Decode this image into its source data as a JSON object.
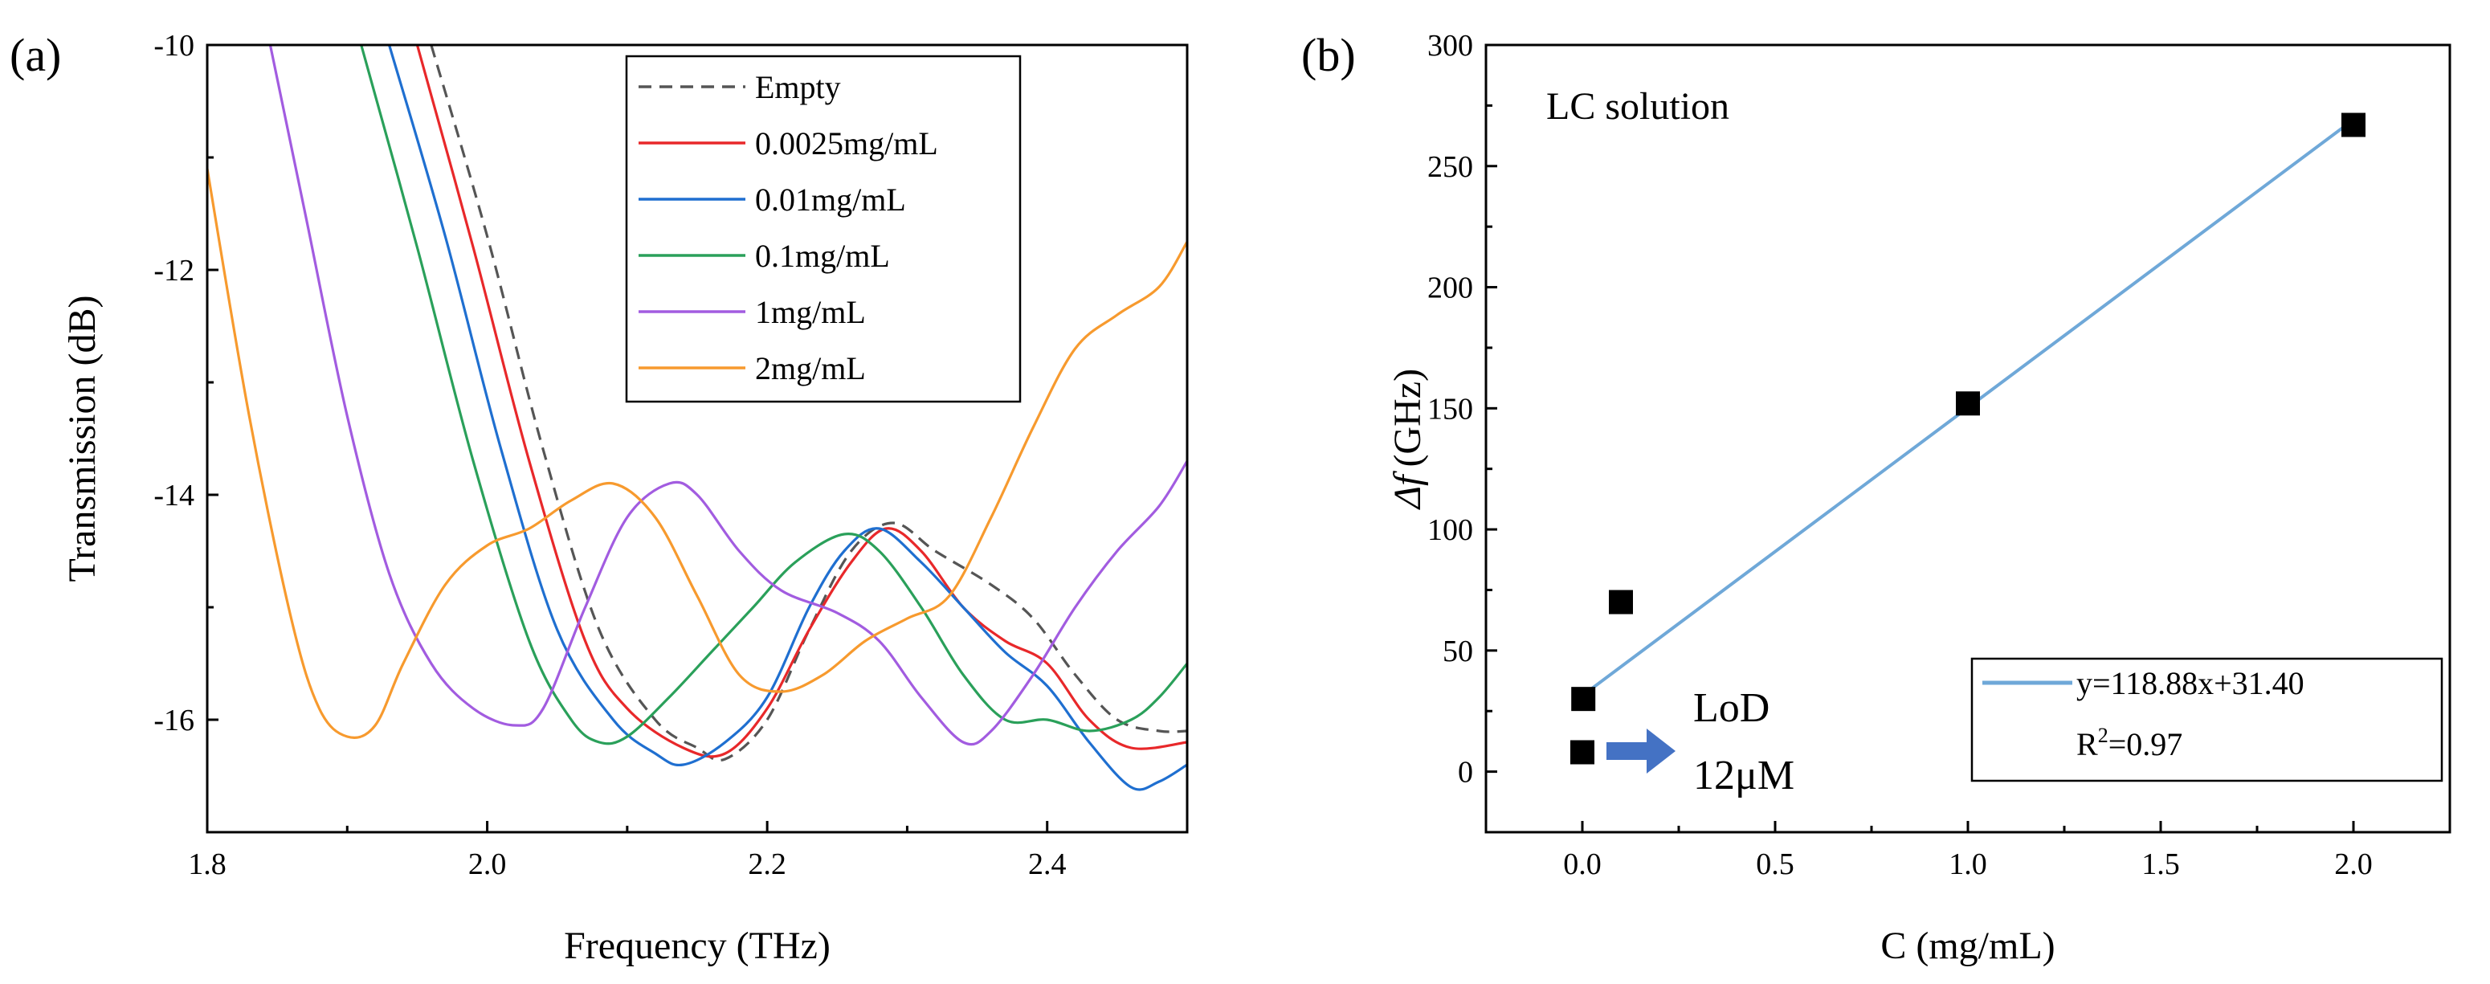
{
  "chart_data": [
    {
      "type": "line",
      "panel_label": "(a)",
      "xlabel": "Frequency (THz)",
      "ylabel": "Transmission (dB)",
      "xlim": [
        1.8,
        2.5
      ],
      "ylim": [
        -17,
        -10
      ],
      "xticks": [
        1.8,
        2.0,
        2.2,
        2.4
      ],
      "xtick_labels": [
        "1.8",
        "2.0",
        "2.2",
        "2.4"
      ],
      "yticks": [
        -16,
        -14,
        -12,
        -10
      ],
      "ytick_labels": [
        "-16",
        "-14",
        "-12",
        "-10"
      ],
      "legend_position": "top-center",
      "series": [
        {
          "name": "Empty",
          "color": "#555555",
          "dash": true,
          "points": [
            [
              1.96,
              -10.0
            ],
            [
              2.0,
              -11.7
            ],
            [
              2.04,
              -13.6
            ],
            [
              2.08,
              -15.2
            ],
            [
              2.12,
              -16.0
            ],
            [
              2.15,
              -16.25
            ],
            [
              2.17,
              -16.35
            ],
            [
              2.2,
              -16.0
            ],
            [
              2.23,
              -15.2
            ],
            [
              2.26,
              -14.5
            ],
            [
              2.29,
              -14.25
            ],
            [
              2.32,
              -14.5
            ],
            [
              2.36,
              -14.8
            ],
            [
              2.39,
              -15.1
            ],
            [
              2.42,
              -15.6
            ],
            [
              2.45,
              -16.0
            ],
            [
              2.48,
              -16.1
            ],
            [
              2.5,
              -16.1
            ]
          ]
        },
        {
          "name": "0.0025mg/mL",
          "color": "#E8282A",
          "dash": false,
          "points": [
            [
              1.95,
              -10.0
            ],
            [
              1.99,
              -11.8
            ],
            [
              2.03,
              -13.7
            ],
            [
              2.07,
              -15.3
            ],
            [
              2.1,
              -15.9
            ],
            [
              2.14,
              -16.25
            ],
            [
              2.17,
              -16.3
            ],
            [
              2.2,
              -15.9
            ],
            [
              2.23,
              -15.2
            ],
            [
              2.26,
              -14.6
            ],
            [
              2.285,
              -14.3
            ],
            [
              2.31,
              -14.5
            ],
            [
              2.34,
              -15.0
            ],
            [
              2.37,
              -15.3
            ],
            [
              2.4,
              -15.5
            ],
            [
              2.43,
              -16.0
            ],
            [
              2.46,
              -16.25
            ],
            [
              2.5,
              -16.2
            ]
          ]
        },
        {
          "name": "0.01mg/mL",
          "color": "#1F6FD0",
          "dash": false,
          "points": [
            [
              1.93,
              -10.0
            ],
            [
              1.97,
              -11.7
            ],
            [
              2.01,
              -13.6
            ],
            [
              2.05,
              -15.2
            ],
            [
              2.09,
              -16.0
            ],
            [
              2.12,
              -16.3
            ],
            [
              2.14,
              -16.4
            ],
            [
              2.17,
              -16.2
            ],
            [
              2.2,
              -15.8
            ],
            [
              2.23,
              -15.0
            ],
            [
              2.255,
              -14.5
            ],
            [
              2.28,
              -14.3
            ],
            [
              2.31,
              -14.6
            ],
            [
              2.34,
              -15.0
            ],
            [
              2.37,
              -15.4
            ],
            [
              2.4,
              -15.7
            ],
            [
              2.43,
              -16.2
            ],
            [
              2.46,
              -16.6
            ],
            [
              2.48,
              -16.55
            ],
            [
              2.5,
              -16.4
            ]
          ]
        },
        {
          "name": "0.1mg/mL",
          "color": "#2AA05A",
          "dash": false,
          "points": [
            [
              1.91,
              -10.0
            ],
            [
              1.95,
              -11.8
            ],
            [
              1.99,
              -13.7
            ],
            [
              2.03,
              -15.3
            ],
            [
              2.06,
              -16.0
            ],
            [
              2.08,
              -16.2
            ],
            [
              2.1,
              -16.15
            ],
            [
              2.13,
              -15.8
            ],
            [
              2.16,
              -15.4
            ],
            [
              2.19,
              -15.0
            ],
            [
              2.22,
              -14.6
            ],
            [
              2.255,
              -14.35
            ],
            [
              2.28,
              -14.5
            ],
            [
              2.31,
              -15.0
            ],
            [
              2.34,
              -15.6
            ],
            [
              2.37,
              -16.0
            ],
            [
              2.4,
              -16.0
            ],
            [
              2.43,
              -16.1
            ],
            [
              2.46,
              -16.0
            ],
            [
              2.48,
              -15.8
            ],
            [
              2.5,
              -15.5
            ]
          ]
        },
        {
          "name": "1mg/mL",
          "color": "#A25CE0",
          "dash": false,
          "points": [
            [
              1.845,
              -10.0
            ],
            [
              1.87,
              -11.5
            ],
            [
              1.9,
              -13.3
            ],
            [
              1.93,
              -14.7
            ],
            [
              1.96,
              -15.5
            ],
            [
              1.99,
              -15.9
            ],
            [
              2.02,
              -16.05
            ],
            [
              2.04,
              -15.9
            ],
            [
              2.07,
              -15.0
            ],
            [
              2.1,
              -14.2
            ],
            [
              2.13,
              -13.9
            ],
            [
              2.15,
              -14.0
            ],
            [
              2.18,
              -14.5
            ],
            [
              2.21,
              -14.85
            ],
            [
              2.25,
              -15.05
            ],
            [
              2.28,
              -15.3
            ],
            [
              2.31,
              -15.8
            ],
            [
              2.34,
              -16.2
            ],
            [
              2.36,
              -16.1
            ],
            [
              2.39,
              -15.6
            ],
            [
              2.42,
              -15.0
            ],
            [
              2.45,
              -14.5
            ],
            [
              2.48,
              -14.1
            ],
            [
              2.5,
              -13.7
            ]
          ]
        },
        {
          "name": "2mg/mL",
          "color": "#F79A2E",
          "dash": false,
          "points": [
            [
              1.8,
              -11.1
            ],
            [
              1.83,
              -13.3
            ],
            [
              1.86,
              -15.1
            ],
            [
              1.88,
              -15.9
            ],
            [
              1.9,
              -16.15
            ],
            [
              1.92,
              -16.05
            ],
            [
              1.94,
              -15.5
            ],
            [
              1.97,
              -14.8
            ],
            [
              2.0,
              -14.45
            ],
            [
              2.03,
              -14.3
            ],
            [
              2.06,
              -14.05
            ],
            [
              2.09,
              -13.9
            ],
            [
              2.12,
              -14.2
            ],
            [
              2.15,
              -14.9
            ],
            [
              2.18,
              -15.6
            ],
            [
              2.21,
              -15.75
            ],
            [
              2.24,
              -15.6
            ],
            [
              2.27,
              -15.3
            ],
            [
              2.3,
              -15.1
            ],
            [
              2.33,
              -14.9
            ],
            [
              2.36,
              -14.2
            ],
            [
              2.39,
              -13.4
            ],
            [
              2.42,
              -12.7
            ],
            [
              2.45,
              -12.4
            ],
            [
              2.48,
              -12.15
            ],
            [
              2.5,
              -11.75
            ]
          ]
        }
      ]
    },
    {
      "type": "scatter",
      "panel_label": "(b)",
      "xlabel": "C (mg/mL)",
      "ylabel_symbol": "Δf",
      "ylabel_unit": "(GHz)",
      "xlim": [
        -0.25,
        2.25
      ],
      "ylim": [
        -25,
        300
      ],
      "xticks": [
        0.0,
        0.5,
        1.0,
        1.5,
        2.0
      ],
      "xtick_labels": [
        "0.0",
        "0.5",
        "1.0",
        "1.5",
        "2.0"
      ],
      "yticks": [
        0,
        50,
        100,
        150,
        200,
        250,
        300
      ],
      "ytick_labels": [
        "0",
        "50",
        "100",
        "150",
        "200",
        "250",
        "300"
      ],
      "title": "LC solution",
      "points": [
        {
          "x": 0.0,
          "y": 8
        },
        {
          "x": 0.0025,
          "y": 30
        },
        {
          "x": 0.1,
          "y": 70
        },
        {
          "x": 1.0,
          "y": 152
        },
        {
          "x": 2.0,
          "y": 267
        }
      ],
      "marker_color": "#000000",
      "fit": {
        "slope": 118.88,
        "intercept": 31.4,
        "x_range": [
          0.0,
          2.0
        ],
        "color": "#6FA8D8"
      },
      "legend": {
        "equation": "y=118.88x+31.40",
        "r2_prefix": "R",
        "r2_sup": "2",
        "r2_value": "=0.97"
      },
      "annotation": {
        "line1": "LoD",
        "line2": "12μM",
        "arrow_color": "#4472C4"
      }
    }
  ]
}
